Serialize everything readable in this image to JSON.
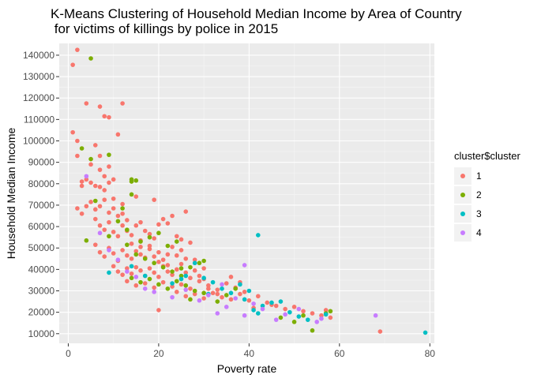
{
  "chart_data": {
    "type": "scatter",
    "title_line1": "K-Means Clustering of Household Median Income by Area of Country",
    "title_line2": " for victims of killings by police in 2015",
    "xlabel": "Poverty rate",
    "ylabel": "Household Median Income",
    "xlim": [
      -2,
      81
    ],
    "ylim": [
      5500,
      145500
    ],
    "x_ticks": [
      0,
      20,
      40,
      60,
      80
    ],
    "y_ticks": [
      10000,
      20000,
      30000,
      40000,
      50000,
      60000,
      70000,
      80000,
      90000,
      100000,
      110000,
      120000,
      130000,
      140000
    ],
    "legend_title": "cluster$cluster",
    "legend_position": "right",
    "grid": true,
    "series": [
      {
        "name": "1",
        "color": "#F8766D",
        "points": [
          [
            1,
            135500
          ],
          [
            2,
            142500
          ],
          [
            1,
            104000
          ],
          [
            2,
            100000
          ],
          [
            2,
            93000
          ],
          [
            4,
            117500
          ],
          [
            7,
            116000
          ],
          [
            8,
            111500
          ],
          [
            9,
            111000
          ],
          [
            12,
            117500
          ],
          [
            11,
            103000
          ],
          [
            3,
            81000
          ],
          [
            3,
            79000
          ],
          [
            4,
            82000
          ],
          [
            5,
            80500
          ],
          [
            6,
            79000
          ],
          [
            7,
            78500
          ],
          [
            8,
            77000
          ],
          [
            9,
            80500
          ],
          [
            2,
            68500
          ],
          [
            3,
            66000
          ],
          [
            4,
            69500
          ],
          [
            5,
            71500
          ],
          [
            6,
            68000
          ],
          [
            7,
            69500
          ],
          [
            8,
            72500
          ],
          [
            9,
            66500
          ],
          [
            10,
            68500
          ],
          [
            11,
            65000
          ],
          [
            12,
            70500
          ],
          [
            13,
            63000
          ],
          [
            6,
            98000
          ],
          [
            7,
            93000
          ],
          [
            9,
            88000
          ],
          [
            7,
            86500
          ],
          [
            5,
            89000
          ],
          [
            8,
            83500
          ],
          [
            10,
            82000
          ],
          [
            6,
            63500
          ],
          [
            7,
            60500
          ],
          [
            8,
            58500
          ],
          [
            9,
            62000
          ],
          [
            10,
            57500
          ],
          [
            11,
            55500
          ],
          [
            12,
            60500
          ],
          [
            13,
            58000
          ],
          [
            14,
            56000
          ],
          [
            15,
            60500
          ],
          [
            16,
            62000
          ],
          [
            17,
            58000
          ],
          [
            18,
            56500
          ],
          [
            19,
            54500
          ],
          [
            20,
            61000
          ],
          [
            21,
            63500
          ],
          [
            23,
            65000
          ],
          [
            26,
            67000
          ],
          [
            19,
            72500
          ],
          [
            22,
            61500
          ],
          [
            6,
            51500
          ],
          [
            7,
            48000
          ],
          [
            8,
            46000
          ],
          [
            9,
            50000
          ],
          [
            10,
            47500
          ],
          [
            11,
            44000
          ],
          [
            12,
            49000
          ],
          [
            13,
            46500
          ],
          [
            14,
            45000
          ],
          [
            15,
            48500
          ],
          [
            16,
            47000
          ],
          [
            17,
            45500
          ],
          [
            18,
            49500
          ],
          [
            19,
            46000
          ],
          [
            20,
            48000
          ],
          [
            21,
            44500
          ],
          [
            22,
            47000
          ],
          [
            23,
            50500
          ],
          [
            24,
            46500
          ],
          [
            25,
            49000
          ],
          [
            26,
            45000
          ],
          [
            27,
            52500
          ],
          [
            10,
            41500
          ],
          [
            11,
            39000
          ],
          [
            12,
            37500
          ],
          [
            13,
            40500
          ],
          [
            14,
            38000
          ],
          [
            15,
            41000
          ],
          [
            16,
            39500
          ],
          [
            17,
            37000
          ],
          [
            18,
            40500
          ],
          [
            19,
            38500
          ],
          [
            20,
            36500
          ],
          [
            21,
            41500
          ],
          [
            22,
            39000
          ],
          [
            23,
            37500
          ],
          [
            24,
            40000
          ],
          [
            25,
            42500
          ],
          [
            26,
            38500
          ],
          [
            27,
            36000
          ],
          [
            28,
            39500
          ],
          [
            29,
            37000
          ],
          [
            30,
            35500
          ],
          [
            13,
            34500
          ],
          [
            15,
            32500
          ],
          [
            17,
            33500
          ],
          [
            19,
            31500
          ],
          [
            21,
            34000
          ],
          [
            23,
            32000
          ],
          [
            25,
            33000
          ],
          [
            27,
            31000
          ],
          [
            29,
            34500
          ],
          [
            31,
            32500
          ],
          [
            33,
            30500
          ],
          [
            35,
            33500
          ],
          [
            37,
            31500
          ],
          [
            39,
            29500
          ],
          [
            24,
            29500
          ],
          [
            26,
            27500
          ],
          [
            28,
            28500
          ],
          [
            30,
            26500
          ],
          [
            32,
            29000
          ],
          [
            34,
            27000
          ],
          [
            36,
            26000
          ],
          [
            38,
            28500
          ],
          [
            40,
            25500
          ],
          [
            42,
            27500
          ],
          [
            44,
            24500
          ],
          [
            46,
            23000
          ],
          [
            48,
            21500
          ],
          [
            50,
            22500
          ],
          [
            52,
            20500
          ],
          [
            54,
            19500
          ],
          [
            56,
            18500
          ],
          [
            58,
            17500
          ],
          [
            57,
            21000
          ],
          [
            69,
            11000
          ],
          [
            20,
            21000
          ],
          [
            31,
            31000
          ],
          [
            33,
            28500
          ],
          [
            45,
            23500
          ],
          [
            41,
            22000
          ],
          [
            36,
            36500
          ],
          [
            38,
            34000
          ],
          [
            14,
            52000
          ],
          [
            16,
            53500
          ],
          [
            18,
            51000
          ],
          [
            25,
            54000
          ],
          [
            24,
            55500
          ],
          [
            12,
            66000
          ],
          [
            10,
            73000
          ],
          [
            15,
            74000
          ],
          [
            16,
            50500
          ],
          [
            20,
            43500
          ],
          [
            22,
            42000
          ],
          [
            28,
            44500
          ],
          [
            30,
            40500
          ]
        ]
      },
      {
        "name": "2",
        "color": "#7CAE00",
        "points": [
          [
            5,
            138500
          ],
          [
            3,
            96500
          ],
          [
            5,
            91500
          ],
          [
            9,
            93500
          ],
          [
            14,
            82000
          ],
          [
            14,
            81000
          ],
          [
            15,
            81500
          ],
          [
            14,
            75000
          ],
          [
            12,
            68500
          ],
          [
            6,
            72000
          ],
          [
            4,
            53500
          ],
          [
            9,
            55500
          ],
          [
            13,
            51500
          ],
          [
            16,
            53000
          ],
          [
            18,
            55000
          ],
          [
            20,
            57000
          ],
          [
            22,
            51000
          ],
          [
            24,
            53000
          ],
          [
            15,
            47000
          ],
          [
            17,
            45000
          ],
          [
            19,
            43000
          ],
          [
            21,
            41000
          ],
          [
            23,
            39000
          ],
          [
            25,
            37000
          ],
          [
            27,
            41000
          ],
          [
            29,
            43000
          ],
          [
            14,
            36000
          ],
          [
            16,
            34000
          ],
          [
            18,
            35500
          ],
          [
            20,
            33000
          ],
          [
            22,
            31000
          ],
          [
            24,
            34500
          ],
          [
            26,
            32500
          ],
          [
            28,
            30000
          ],
          [
            27,
            26000
          ],
          [
            30,
            29000
          ],
          [
            33,
            25000
          ],
          [
            35,
            28000
          ],
          [
            37,
            31000
          ],
          [
            47,
            17500
          ],
          [
            50,
            15500
          ],
          [
            52,
            18500
          ],
          [
            54,
            11500
          ],
          [
            57,
            19500
          ],
          [
            58,
            20500
          ],
          [
            11,
            62500
          ],
          [
            13,
            58500
          ],
          [
            25,
            40500
          ],
          [
            30,
            44000
          ]
        ]
      },
      {
        "name": "3",
        "color": "#00BFC4",
        "points": [
          [
            42,
            56000
          ],
          [
            9,
            38500
          ],
          [
            14,
            41500
          ],
          [
            17,
            37000
          ],
          [
            23,
            33500
          ],
          [
            25,
            35500
          ],
          [
            28,
            43000
          ],
          [
            30,
            36000
          ],
          [
            32,
            34000
          ],
          [
            34,
            31000
          ],
          [
            36,
            29000
          ],
          [
            38,
            33000
          ],
          [
            40,
            30000
          ],
          [
            39,
            26000
          ],
          [
            41,
            21000
          ],
          [
            43,
            23000
          ],
          [
            45,
            24500
          ],
          [
            47,
            25000
          ],
          [
            49,
            20000
          ],
          [
            51,
            18000
          ],
          [
            53,
            16500
          ],
          [
            57,
            19000
          ],
          [
            79,
            10500
          ],
          [
            42,
            19500
          ],
          [
            26,
            37000
          ],
          [
            31,
            28500
          ]
        ]
      },
      {
        "name": "4",
        "color": "#C77CFF",
        "points": [
          [
            4,
            83500
          ],
          [
            7,
            57000
          ],
          [
            9,
            49000
          ],
          [
            11,
            44500
          ],
          [
            13,
            39000
          ],
          [
            15,
            36500
          ],
          [
            17,
            31000
          ],
          [
            19,
            29500
          ],
          [
            23,
            27000
          ],
          [
            26,
            30500
          ],
          [
            29,
            25500
          ],
          [
            31,
            28000
          ],
          [
            33,
            19500
          ],
          [
            35,
            22500
          ],
          [
            37,
            26500
          ],
          [
            39,
            18500
          ],
          [
            41,
            24000
          ],
          [
            43,
            21500
          ],
          [
            46,
            16500
          ],
          [
            48,
            19000
          ],
          [
            51,
            21500
          ],
          [
            55,
            15500
          ],
          [
            56,
            17000
          ],
          [
            68,
            18500
          ],
          [
            39,
            42000
          ],
          [
            34,
            33000
          ]
        ]
      }
    ]
  }
}
